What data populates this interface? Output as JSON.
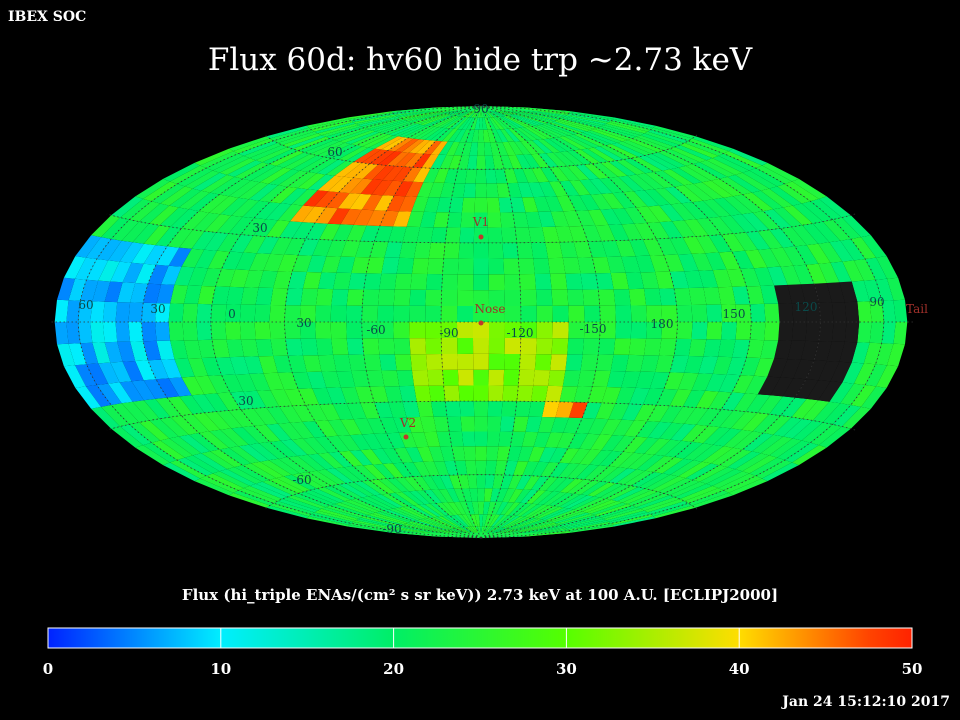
{
  "header": {
    "org": "IBEX SOC",
    "title": "Flux   60d: hv60 hide trp ~2.73 keV",
    "timestamp": "Jan 24 15:12:10 2017"
  },
  "colorbar": {
    "label": "Flux (hi_triple ENAs/(cm² s sr keV))  2.73 keV at 100 A.U. [ECLIPJ2000]",
    "ticks": [
      "0",
      "10",
      "20",
      "30",
      "40",
      "50"
    ],
    "colors": [
      "#0022ff",
      "#00eeff",
      "#00ee66",
      "#55ff00",
      "#ffdd00",
      "#ff4400",
      "#ff2200"
    ],
    "tick_values": [
      0,
      10,
      20,
      30,
      40,
      50
    ]
  },
  "chart_data": {
    "type": "heatmap",
    "projection": "hammer-aitoff",
    "coordinate_frame": "ECLIPJ2000",
    "energy_keV": 2.73,
    "distance_AU": 100,
    "color_range": [
      0,
      50
    ],
    "grid": true,
    "longitude_labels": [
      "60",
      "30",
      "0",
      "30",
      "-60",
      "-90",
      "-120",
      "-150",
      "180",
      "150",
      "120",
      "90"
    ],
    "latitude_labels": [
      "90",
      "60",
      "30",
      "30",
      "-60",
      "-90"
    ],
    "markers": [
      {
        "label": "V1",
        "lon": 255,
        "lat": 35
      },
      {
        "label": "Nose",
        "lon": 255,
        "lat": 5
      },
      {
        "label": "V2",
        "lon": 290,
        "lat": -32
      },
      {
        "label": "Tail",
        "lon": 75,
        "lat": -5
      }
    ],
    "regions": [
      {
        "description": "high flux ribbon north",
        "lon_range": [
          290,
          340
        ],
        "lat_range": [
          35,
          70
        ],
        "value": 45
      },
      {
        "description": "high flux south",
        "lon_range": [
          210,
          230
        ],
        "lat_range": [
          -38,
          -28
        ],
        "value": 44
      },
      {
        "description": "low flux lobe",
        "lon_range": [
          20,
          70
        ],
        "lat_range": [
          -25,
          25
        ],
        "value": 8
      },
      {
        "description": "missing data",
        "lon_range": [
          100,
          135
        ],
        "lat_range": [
          -25,
          10
        ],
        "value": null
      },
      {
        "description": "elevated band near nose",
        "lon_range": [
          225,
          280
        ],
        "lat_range": [
          -30,
          0
        ],
        "value": 33
      }
    ]
  }
}
